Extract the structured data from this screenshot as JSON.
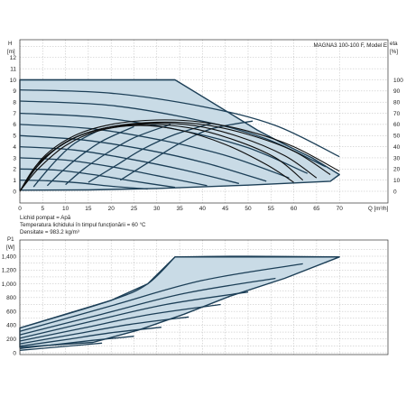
{
  "title": "MAGNA3 100-100 F, Model E",
  "fluid_notes": [
    "Lichid pompat = Apă",
    "Temperatura lichidului în timpul funcţionării = 60 °C",
    "Densitate = 983.2 kg/m³"
  ],
  "colors": {
    "region_fill": "#c9dbe6",
    "curve": "#1c3f57",
    "eta": "#0d0d0d",
    "grid": "#b9b9b9"
  },
  "chart_data": [
    {
      "type": "line",
      "name": "H-Q",
      "ylabel_lines": [
        "H",
        "[m]"
      ],
      "y2label_lines": [
        "eta",
        "[%]"
      ],
      "xlabel": "Q [m³/h]",
      "xlim": [
        0,
        72
      ],
      "ylim": [
        0,
        13
      ],
      "y2lim": [
        0,
        130
      ],
      "x_ticks": [
        "0",
        "5",
        "10",
        "15",
        "20",
        "25",
        "30",
        "35",
        "40",
        "45",
        "50",
        "55",
        "60",
        "65",
        "70"
      ],
      "y_ticks": [
        "0",
        "1",
        "2",
        "3",
        "4",
        "5",
        "6",
        "7",
        "8",
        "9",
        "10",
        "11",
        "12"
      ],
      "y2_ticks": [
        "0",
        "10",
        "20",
        "30",
        "40",
        "50",
        "60",
        "70",
        "80",
        "90",
        "100"
      ],
      "grid": true,
      "envelope": [
        [
          0,
          10
        ],
        [
          34,
          10
        ],
        [
          52,
          5.5
        ],
        [
          58,
          4.2
        ],
        [
          64,
          3.0
        ],
        [
          70,
          1.5
        ],
        [
          68,
          0.9
        ],
        [
          50,
          0.55
        ],
        [
          30,
          0.25
        ],
        [
          15,
          0.12
        ],
        [
          0,
          0.1
        ]
      ],
      "speed_curves": [
        [
          [
            0,
            10
          ],
          [
            34,
            10
          ]
        ],
        [
          [
            0,
            9.1
          ],
          [
            20,
            8.8
          ],
          [
            40,
            7.6
          ],
          [
            56,
            5.9
          ],
          [
            70,
            3.1
          ]
        ],
        [
          [
            0,
            8.1
          ],
          [
            20,
            7.7
          ],
          [
            40,
            6.3
          ],
          [
            54,
            4.7
          ],
          [
            67,
            2.2
          ]
        ],
        [
          [
            0,
            7.0
          ],
          [
            18,
            6.6
          ],
          [
            36,
            5.4
          ],
          [
            50,
            3.9
          ],
          [
            63,
            1.6
          ]
        ],
        [
          [
            0,
            6.0
          ],
          [
            16,
            5.6
          ],
          [
            32,
            4.5
          ],
          [
            46,
            3.1
          ],
          [
            59,
            1.2
          ]
        ],
        [
          [
            0,
            5.0
          ],
          [
            14,
            4.6
          ],
          [
            28,
            3.7
          ],
          [
            41,
            2.5
          ],
          [
            54,
            0.9
          ]
        ],
        [
          [
            0,
            4.0
          ],
          [
            12,
            3.7
          ],
          [
            24,
            2.9
          ],
          [
            36,
            1.9
          ],
          [
            48,
            0.7
          ]
        ],
        [
          [
            0,
            3.0
          ],
          [
            10,
            2.8
          ],
          [
            20,
            2.2
          ],
          [
            30,
            1.4
          ],
          [
            41,
            0.5
          ]
        ],
        [
          [
            0,
            2.0
          ],
          [
            8,
            1.9
          ],
          [
            16,
            1.5
          ],
          [
            25,
            0.9
          ],
          [
            34,
            0.35
          ]
        ],
        [
          [
            0,
            1.0
          ],
          [
            6,
            0.95
          ],
          [
            13,
            0.75
          ],
          [
            20,
            0.45
          ],
          [
            28,
            0.2
          ]
        ]
      ],
      "eta_curves": [
        [
          [
            0,
            0
          ],
          [
            5,
            30
          ],
          [
            12,
            50
          ],
          [
            20,
            60
          ],
          [
            30,
            64
          ],
          [
            40,
            62
          ],
          [
            50,
            54
          ],
          [
            60,
            40
          ],
          [
            70,
            18
          ]
        ],
        [
          [
            0,
            0
          ],
          [
            5,
            28
          ],
          [
            12,
            48
          ],
          [
            20,
            58
          ],
          [
            30,
            62
          ],
          [
            40,
            60
          ],
          [
            50,
            51
          ],
          [
            60,
            36
          ],
          [
            68,
            15
          ]
        ],
        [
          [
            0,
            0
          ],
          [
            4,
            25
          ],
          [
            11,
            46
          ],
          [
            19,
            57
          ],
          [
            28,
            61
          ],
          [
            38,
            59
          ],
          [
            48,
            49
          ],
          [
            58,
            32
          ],
          [
            65,
            12
          ]
        ],
        [
          [
            0,
            0
          ],
          [
            4,
            23
          ],
          [
            10,
            44
          ],
          [
            18,
            56
          ],
          [
            27,
            60
          ],
          [
            37,
            57
          ],
          [
            47,
            46
          ],
          [
            56,
            30
          ],
          [
            62,
            10
          ]
        ],
        [
          [
            0,
            0
          ],
          [
            4,
            20
          ],
          [
            10,
            41
          ],
          [
            17,
            54
          ],
          [
            26,
            59
          ],
          [
            35,
            55
          ],
          [
            45,
            42
          ],
          [
            54,
            24
          ],
          [
            60,
            8
          ]
        ]
      ],
      "fan_curves": [
        [
          [
            22,
            1.0
          ],
          [
            29,
            2.8
          ],
          [
            35,
            4.3
          ],
          [
            42,
            5.6
          ],
          [
            51,
            6.3
          ]
        ],
        [
          [
            15,
            0.8
          ],
          [
            21,
            2.3
          ],
          [
            27,
            3.8
          ],
          [
            34,
            5.1
          ],
          [
            42,
            6.1
          ]
        ],
        [
          [
            10,
            0.6
          ],
          [
            14,
            2.0
          ],
          [
            19,
            3.4
          ],
          [
            25,
            4.8
          ],
          [
            33,
            6.0
          ]
        ],
        [
          [
            6,
            0.5
          ],
          [
            9,
            1.7
          ],
          [
            13,
            3.1
          ],
          [
            18,
            4.5
          ],
          [
            25,
            5.8
          ]
        ],
        [
          [
            3,
            0.4
          ],
          [
            5,
            1.4
          ],
          [
            8,
            2.8
          ],
          [
            12,
            4.3
          ],
          [
            18,
            5.6
          ]
        ]
      ]
    },
    {
      "type": "line",
      "name": "P1-Q",
      "ylabel_lines": [
        "P1",
        "[W]"
      ],
      "xlim": [
        0,
        72
      ],
      "ylim": [
        0,
        1560
      ],
      "y_ticks": [
        "0",
        "200",
        "400",
        "600",
        "800",
        "1,000",
        "1,200",
        "1,400"
      ],
      "grid": true,
      "envelope": [
        [
          0,
          360
        ],
        [
          20,
          760
        ],
        [
          28,
          1000
        ],
        [
          34,
          1390
        ],
        [
          70,
          1390
        ],
        [
          58,
          1080
        ],
        [
          46,
          820
        ],
        [
          36,
          560
        ],
        [
          26,
          330
        ],
        [
          16,
          150
        ],
        [
          0,
          80
        ]
      ],
      "power_curves": [
        [
          [
            34,
            1390
          ],
          [
            50,
            1400
          ],
          [
            70,
            1390
          ]
        ],
        [
          [
            0,
            360
          ],
          [
            20,
            760
          ],
          [
            28,
            1000
          ],
          [
            34,
            1390
          ]
        ],
        [
          [
            0,
            310
          ],
          [
            20,
            680
          ],
          [
            40,
            1050
          ],
          [
            62,
            1290
          ]
        ],
        [
          [
            0,
            260
          ],
          [
            18,
            560
          ],
          [
            36,
            860
          ],
          [
            56,
            1080
          ]
        ],
        [
          [
            0,
            210
          ],
          [
            16,
            460
          ],
          [
            32,
            700
          ],
          [
            50,
            880
          ]
        ],
        [
          [
            0,
            170
          ],
          [
            14,
            360
          ],
          [
            28,
            550
          ],
          [
            44,
            700
          ]
        ],
        [
          [
            0,
            130
          ],
          [
            12,
            270
          ],
          [
            24,
            410
          ],
          [
            37,
            520
          ]
        ],
        [
          [
            0,
            95
          ],
          [
            10,
            190
          ],
          [
            20,
            290
          ],
          [
            31,
            370
          ]
        ],
        [
          [
            0,
            60
          ],
          [
            8,
            120
          ],
          [
            16,
            180
          ],
          [
            25,
            240
          ]
        ],
        [
          [
            0,
            35
          ],
          [
            6,
            70
          ],
          [
            12,
            105
          ],
          [
            18,
            140
          ]
        ]
      ]
    }
  ]
}
